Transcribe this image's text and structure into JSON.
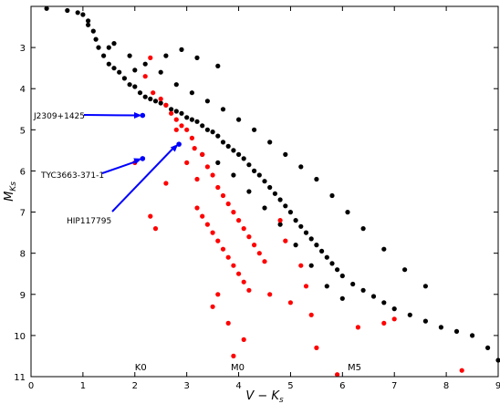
{
  "chart_data": {
    "type": "scatter",
    "xlabel": "V − K_s",
    "ylabel": "M_Ks",
    "xlim": [
      0,
      9
    ],
    "ylim": [
      11,
      2
    ],
    "y_inverted": true,
    "xticks": [
      "0",
      "1",
      "2",
      "3",
      "4",
      "5",
      "6",
      "7",
      "8",
      "9"
    ],
    "yticks": [
      "3",
      "4",
      "5",
      "6",
      "7",
      "8",
      "9",
      "10",
      "11"
    ],
    "spectral_types": [
      {
        "label": "K0",
        "x": 2.0
      },
      {
        "label": "M0",
        "x": 3.85
      },
      {
        "label": "M5",
        "x": 6.1
      }
    ],
    "annotations": [
      {
        "label": "J2309+1425",
        "point": [
          2.15,
          4.65
        ],
        "color": "#0000ff"
      },
      {
        "label": "TYC3663-371-1",
        "point": [
          2.15,
          5.7
        ],
        "color": "#0000ff"
      },
      {
        "label": "HIP117795",
        "point": [
          2.85,
          5.35
        ],
        "color": "#0000ff"
      }
    ],
    "series": [
      {
        "color": "#000000",
        "description_only": true,
        "values": [
          [
            0.3,
            2.05
          ],
          [
            0.7,
            2.1
          ],
          [
            1.0,
            2.2
          ],
          [
            1.1,
            2.35
          ],
          [
            1.2,
            2.6
          ],
          [
            1.25,
            2.8
          ],
          [
            1.3,
            3.0
          ],
          [
            1.4,
            3.2
          ],
          [
            1.5,
            3.4
          ],
          [
            1.6,
            3.5
          ],
          [
            1.7,
            3.6
          ],
          [
            1.8,
            3.75
          ],
          [
            1.9,
            3.9
          ],
          [
            2.0,
            3.95
          ],
          [
            2.1,
            4.1
          ],
          [
            2.2,
            4.2
          ],
          [
            2.3,
            4.25
          ],
          [
            2.4,
            4.3
          ],
          [
            2.5,
            4.35
          ],
          [
            2.6,
            4.4
          ],
          [
            2.7,
            4.5
          ],
          [
            2.8,
            4.55
          ],
          [
            2.9,
            4.6
          ],
          [
            3.0,
            4.7
          ],
          [
            3.1,
            4.75
          ],
          [
            3.2,
            4.8
          ],
          [
            3.3,
            4.9
          ],
          [
            3.4,
            5.0
          ],
          [
            3.5,
            5.05
          ],
          [
            3.6,
            5.15
          ],
          [
            3.7,
            5.3
          ],
          [
            3.8,
            5.4
          ],
          [
            3.9,
            5.5
          ],
          [
            4.0,
            5.6
          ],
          [
            4.1,
            5.7
          ],
          [
            4.2,
            5.85
          ],
          [
            4.3,
            6.0
          ],
          [
            4.4,
            6.1
          ],
          [
            4.5,
            6.25
          ],
          [
            4.6,
            6.4
          ],
          [
            4.7,
            6.55
          ],
          [
            4.8,
            6.7
          ],
          [
            4.9,
            6.85
          ],
          [
            5.0,
            7.0
          ],
          [
            5.1,
            7.2
          ],
          [
            5.2,
            7.35
          ],
          [
            5.3,
            7.5
          ],
          [
            5.4,
            7.65
          ],
          [
            5.5,
            7.8
          ],
          [
            5.6,
            7.95
          ],
          [
            5.7,
            8.1
          ],
          [
            5.8,
            8.25
          ],
          [
            5.9,
            8.4
          ],
          [
            6.0,
            8.55
          ],
          [
            6.2,
            8.75
          ],
          [
            6.4,
            8.9
          ],
          [
            6.6,
            9.05
          ],
          [
            6.8,
            9.2
          ],
          [
            7.0,
            9.35
          ],
          [
            7.3,
            9.5
          ],
          [
            7.6,
            9.65
          ],
          [
            7.9,
            9.8
          ],
          [
            8.2,
            9.9
          ],
          [
            8.5,
            10.0
          ],
          [
            8.8,
            10.3
          ],
          [
            9.0,
            10.6
          ],
          [
            1.6,
            2.9
          ],
          [
            1.9,
            3.2
          ],
          [
            2.2,
            3.4
          ],
          [
            2.5,
            3.6
          ],
          [
            2.8,
            3.9
          ],
          [
            3.1,
            4.1
          ],
          [
            3.4,
            4.3
          ],
          [
            3.7,
            4.5
          ],
          [
            4.0,
            4.75
          ],
          [
            4.3,
            5.0
          ],
          [
            4.6,
            5.3
          ],
          [
            4.9,
            5.6
          ],
          [
            5.2,
            5.9
          ],
          [
            5.5,
            6.2
          ],
          [
            5.8,
            6.6
          ],
          [
            6.1,
            7.0
          ],
          [
            6.4,
            7.4
          ],
          [
            6.8,
            7.9
          ],
          [
            7.2,
            8.4
          ],
          [
            7.6,
            8.8
          ],
          [
            3.3,
            5.6
          ],
          [
            3.6,
            5.8
          ],
          [
            3.9,
            6.1
          ],
          [
            4.2,
            6.5
          ],
          [
            4.5,
            6.9
          ],
          [
            4.8,
            7.3
          ],
          [
            5.1,
            7.8
          ],
          [
            5.4,
            8.3
          ],
          [
            5.7,
            8.8
          ],
          [
            6.0,
            9.1
          ],
          [
            1.5,
            3.0
          ],
          [
            1.1,
            2.45
          ],
          [
            0.9,
            2.15
          ],
          [
            2.0,
            3.55
          ],
          [
            3.6,
            3.45
          ],
          [
            2.9,
            3.05
          ],
          [
            3.2,
            3.25
          ],
          [
            2.6,
            3.2
          ]
        ]
      },
      {
        "color": "#ff0000",
        "description_only": true,
        "values": [
          [
            2.3,
            3.25
          ],
          [
            2.2,
            3.7
          ],
          [
            2.35,
            4.1
          ],
          [
            2.5,
            4.25
          ],
          [
            2.6,
            4.4
          ],
          [
            2.7,
            4.6
          ],
          [
            2.8,
            4.75
          ],
          [
            2.9,
            4.9
          ],
          [
            3.0,
            5.0
          ],
          [
            3.1,
            5.2
          ],
          [
            3.15,
            5.45
          ],
          [
            3.3,
            5.6
          ],
          [
            3.4,
            5.9
          ],
          [
            3.5,
            6.1
          ],
          [
            3.6,
            6.4
          ],
          [
            3.7,
            6.6
          ],
          [
            3.8,
            6.8
          ],
          [
            3.9,
            7.0
          ],
          [
            4.0,
            7.2
          ],
          [
            4.1,
            7.4
          ],
          [
            4.2,
            7.6
          ],
          [
            4.3,
            7.8
          ],
          [
            4.4,
            8.0
          ],
          [
            4.5,
            8.2
          ],
          [
            3.2,
            6.9
          ],
          [
            3.3,
            7.1
          ],
          [
            3.4,
            7.3
          ],
          [
            3.5,
            7.5
          ],
          [
            3.6,
            7.7
          ],
          [
            3.7,
            7.9
          ],
          [
            3.8,
            8.1
          ],
          [
            3.9,
            8.3
          ],
          [
            4.0,
            8.5
          ],
          [
            4.1,
            8.7
          ],
          [
            4.2,
            8.9
          ],
          [
            3.5,
            9.3
          ],
          [
            3.8,
            9.7
          ],
          [
            4.1,
            10.1
          ],
          [
            3.9,
            10.5
          ],
          [
            5.9,
            10.95
          ],
          [
            5.5,
            10.3
          ],
          [
            6.3,
            9.8
          ],
          [
            6.8,
            9.7
          ],
          [
            7.0,
            9.6
          ],
          [
            8.3,
            10.85
          ],
          [
            5.4,
            9.5
          ],
          [
            4.6,
            9.0
          ],
          [
            5.0,
            9.2
          ],
          [
            3.0,
            5.8
          ],
          [
            2.8,
            5.0
          ],
          [
            2.0,
            5.8
          ],
          [
            2.6,
            6.3
          ],
          [
            3.2,
            6.2
          ],
          [
            4.8,
            7.2
          ],
          [
            4.9,
            7.7
          ],
          [
            5.2,
            8.3
          ],
          [
            5.3,
            8.8
          ],
          [
            3.6,
            9.0
          ],
          [
            2.4,
            7.4
          ],
          [
            2.3,
            7.1
          ]
        ]
      }
    ]
  }
}
